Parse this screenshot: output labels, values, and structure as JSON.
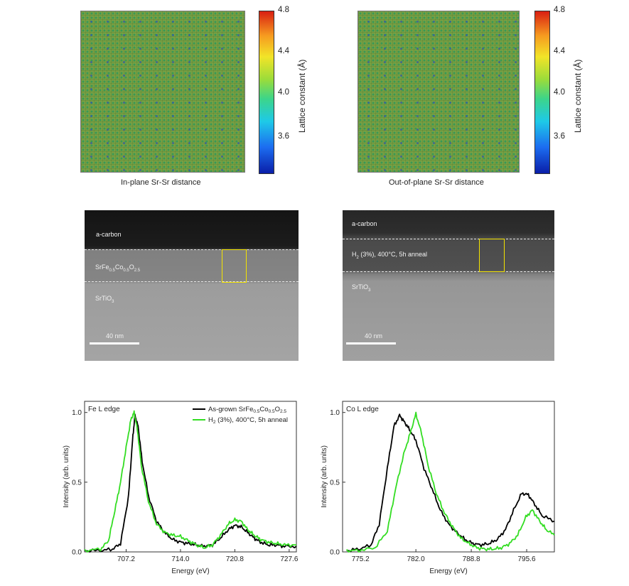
{
  "colormap": {
    "label": "Lattice constant (Å)",
    "ticks": [
      "4.8",
      "4.4",
      "4.0",
      "3.6"
    ],
    "gradient_colors": [
      "#0a1ea8",
      "#1c6cf0",
      "#1ec9e8",
      "#3cd58a",
      "#9bdc3a",
      "#f2e428",
      "#f69b20",
      "#d91f12"
    ]
  },
  "maps": {
    "left_caption": "In-plane Sr-Sr distance",
    "right_caption": "Out-of-plane Sr-Sr distance"
  },
  "tem": {
    "left": {
      "top_label": "a-carbon",
      "film_label": "SrFe0.5Co0.5O2.5",
      "substrate_label": "SrTiO3",
      "scale_label": "40 nm"
    },
    "right": {
      "top_label": "a-carbon",
      "film_label": "H2 (3%), 400°C, 5h anneal",
      "substrate_label": "SrTiO3",
      "scale_label": "40 nm"
    }
  },
  "chart_data": [
    {
      "type": "line",
      "title": "Fe L edge",
      "xlabel": "Energy (eV)",
      "ylabel": "Intensity (arb. units)",
      "xlim": [
        702.0,
        728.5
      ],
      "ylim": [
        0.0,
        1.08
      ],
      "xticks": [
        "707.2",
        "714.0",
        "720.8",
        "727.6"
      ],
      "yticks": [
        "0.0",
        "0.5",
        "1.0"
      ],
      "legend": [
        "As-grown SrFe0.5Co0.5O2.5",
        "H2 (3%), 400°C, 5h anneal"
      ],
      "series": [
        {
          "name": "As-grown SrFe0.5Co0.5O2.5",
          "color": "#000000",
          "x": [
            702.0,
            704.0,
            705.5,
            706.5,
            707.5,
            708.0,
            708.3,
            708.7,
            709.2,
            710.0,
            711.0,
            712.0,
            713.0,
            714.0,
            715.0,
            716.0,
            717.0,
            718.0,
            719.0,
            720.0,
            720.8,
            721.6,
            722.4,
            723.2,
            724.0,
            725.0,
            726.0,
            727.0,
            728.5
          ],
          "y": [
            0.01,
            0.01,
            0.02,
            0.06,
            0.4,
            0.8,
            0.98,
            0.9,
            0.65,
            0.4,
            0.22,
            0.14,
            0.09,
            0.07,
            0.06,
            0.05,
            0.04,
            0.05,
            0.1,
            0.16,
            0.19,
            0.18,
            0.14,
            0.1,
            0.07,
            0.05,
            0.05,
            0.04,
            0.04
          ]
        },
        {
          "name": "H2 (3%), 400°C, 5h anneal",
          "color": "#33dd22",
          "x": [
            702.0,
            704.0,
            705.0,
            705.8,
            706.5,
            707.2,
            707.8,
            708.2,
            708.6,
            709.1,
            710.0,
            711.0,
            712.0,
            713.0,
            714.0,
            715.0,
            716.0,
            717.0,
            718.0,
            719.0,
            720.0,
            720.8,
            721.6,
            722.4,
            723.2,
            724.0,
            725.0,
            726.0,
            727.0,
            728.5
          ],
          "y": [
            0.01,
            0.02,
            0.08,
            0.3,
            0.5,
            0.75,
            0.95,
            1.0,
            0.88,
            0.62,
            0.36,
            0.2,
            0.14,
            0.12,
            0.11,
            0.08,
            0.05,
            0.03,
            0.05,
            0.12,
            0.2,
            0.23,
            0.22,
            0.16,
            0.12,
            0.09,
            0.07,
            0.06,
            0.05,
            0.05
          ]
        }
      ]
    },
    {
      "type": "line",
      "title": "Co L edge",
      "xlabel": "Energy (eV)",
      "ylabel": "Intensity (arb. units)",
      "xlim": [
        773.0,
        799.0
      ],
      "ylim": [
        0.0,
        1.08
      ],
      "xticks": [
        "775.2",
        "782.0",
        "788.8",
        "795.6"
      ],
      "yticks": [
        "0.0",
        "0.5",
        "1.0"
      ],
      "series": [
        {
          "name": "As-grown SrFe0.5Co0.5O2.5",
          "color": "#000000",
          "x": [
            773.5,
            775.0,
            776.5,
            777.5,
            778.5,
            779.3,
            780.0,
            780.6,
            781.2,
            782.0,
            783.0,
            784.0,
            785.0,
            786.0,
            787.0,
            788.0,
            789.0,
            790.0,
            791.0,
            792.0,
            793.0,
            794.0,
            795.0,
            795.8,
            796.6,
            797.5,
            799.0
          ],
          "y": [
            0.01,
            0.02,
            0.05,
            0.2,
            0.6,
            0.9,
            0.98,
            0.93,
            0.88,
            0.8,
            0.6,
            0.45,
            0.3,
            0.2,
            0.14,
            0.09,
            0.06,
            0.05,
            0.06,
            0.09,
            0.16,
            0.3,
            0.42,
            0.41,
            0.34,
            0.26,
            0.22
          ]
        },
        {
          "name": "H2 (3%), 400°C, 5h anneal",
          "color": "#33dd22",
          "x": [
            773.5,
            775.0,
            777.0,
            778.5,
            779.5,
            780.5,
            781.3,
            782.0,
            782.7,
            783.5,
            784.5,
            785.5,
            786.5,
            787.5,
            788.5,
            789.5,
            790.5,
            791.5,
            792.5,
            793.5,
            794.5,
            795.5,
            796.3,
            797.2,
            798.0,
            799.0
          ],
          "y": [
            0.01,
            0.01,
            0.03,
            0.15,
            0.45,
            0.7,
            0.85,
            0.99,
            0.85,
            0.62,
            0.42,
            0.28,
            0.18,
            0.1,
            0.06,
            0.03,
            0.02,
            0.02,
            0.03,
            0.06,
            0.12,
            0.25,
            0.3,
            0.22,
            0.16,
            0.12
          ]
        }
      ]
    }
  ]
}
